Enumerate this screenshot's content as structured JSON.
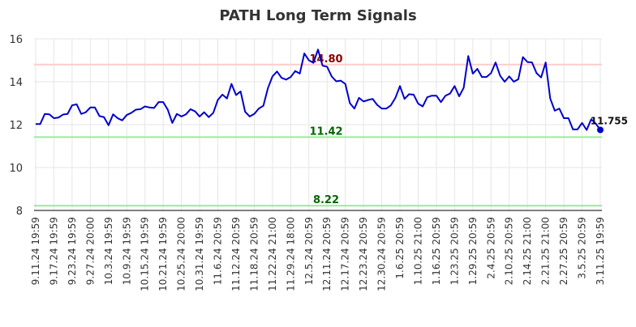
{
  "chart_data": {
    "type": "line",
    "title": "PATH Long Term Signals",
    "xlabel": "",
    "ylabel": "",
    "ylim": [
      8,
      16
    ],
    "yticks": [
      8,
      10,
      12,
      14,
      16
    ],
    "grid": true,
    "x_tick_labels": [
      "9.11.24 19:59",
      "9.17.24 19:59",
      "9.23.24 19:59",
      "9.27.24 20:00",
      "10.3.24 19:59",
      "10.9.24 19:59",
      "10.15.24 19:59",
      "10.21.24 19:59",
      "10.25.24 20:00",
      "10.31.24 19:59",
      "11.6.24 20:59",
      "11.12.24 20:59",
      "11.18.24 20:59",
      "11.22.24 21:00",
      "11.29.24 18:00",
      "12.5.24 20:59",
      "12.11.24 20:59",
      "12.17.24 20:59",
      "12.23.24 20:59",
      "12.30.24 20:59",
      "1.6.25 20:59",
      "1.10.25 21:00",
      "1.16.25 20:59",
      "1.23.25 20:59",
      "1.29.25 20:59",
      "2.4.25 20:59",
      "2.10.25 20:59",
      "2.14.25 21:00",
      "2.21.25 21:00",
      "2.27.25 20:59",
      "3.5.25 20:59",
      "3.11.25 19:59"
    ],
    "series": [
      {
        "color": "#0000cc",
        "values": [
          12.03,
          12.03,
          12.5,
          12.48,
          12.3,
          12.33,
          12.47,
          12.5,
          12.9,
          12.95,
          12.5,
          12.58,
          12.8,
          12.8,
          12.4,
          12.35,
          11.97,
          12.48,
          12.3,
          12.2,
          12.45,
          12.55,
          12.7,
          12.72,
          12.85,
          12.8,
          12.78,
          13.05,
          13.05,
          12.7,
          12.08,
          12.5,
          12.38,
          12.48,
          12.72,
          12.62,
          12.38,
          12.58,
          12.35,
          12.55,
          13.15,
          13.4,
          13.22,
          13.9,
          13.38,
          13.55,
          12.6,
          12.38,
          12.5,
          12.75,
          12.88,
          13.7,
          14.25,
          14.48,
          14.18,
          14.1,
          14.22,
          14.5,
          14.38,
          15.32,
          15.0,
          14.88,
          15.5,
          14.75,
          14.7,
          14.25,
          14.02,
          14.05,
          13.9,
          13.0,
          12.75,
          13.25,
          13.08,
          13.15,
          13.2,
          12.92,
          12.75,
          12.75,
          12.9,
          13.25,
          13.8,
          13.2,
          13.42,
          13.4,
          12.98,
          12.85,
          13.28,
          13.35,
          13.35,
          13.05,
          13.35,
          13.45,
          13.8,
          13.32,
          13.72,
          15.2,
          14.38,
          14.6,
          14.22,
          14.22,
          14.4,
          14.9,
          14.28,
          14.0,
          14.25,
          14.0,
          14.12,
          15.15,
          14.92,
          14.9,
          14.4,
          14.2,
          14.9,
          13.22,
          12.65,
          12.75,
          12.3,
          12.3,
          11.78,
          11.78,
          12.08,
          11.75,
          12.25,
          12.05,
          11.755
        ]
      }
    ],
    "last_value_label": "11.755",
    "horizontal_lines": [
      {
        "value": 14.8,
        "label": "14.80",
        "line_color": "#ffcccc",
        "label_color": "#8b0000"
      },
      {
        "value": 11.42,
        "label": "11.42",
        "line_color": "#99ee99",
        "label_color": "#006600"
      },
      {
        "value": 8.22,
        "label": "8.22",
        "line_color": "#99ee99",
        "label_color": "#006600"
      }
    ]
  }
}
